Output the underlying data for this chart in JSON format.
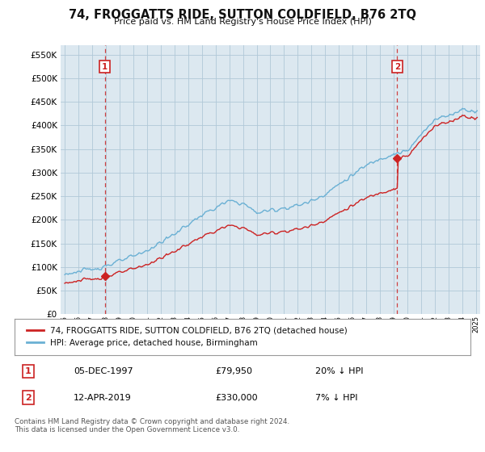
{
  "title": "74, FROGGATTS RIDE, SUTTON COLDFIELD, B76 2TQ",
  "subtitle": "Price paid vs. HM Land Registry's House Price Index (HPI)",
  "sale1_price": 79950,
  "sale1_display_date": "05-DEC-1997",
  "sale1_pct": "20% ↓ HPI",
  "sale2_price": 330000,
  "sale2_display_date": "12-APR-2019",
  "sale2_pct": "7% ↓ HPI",
  "hpi_color": "#6ab0d4",
  "price_color": "#cc2222",
  "vline_color": "#cc2222",
  "bg_color": "#ffffff",
  "plot_bg_color": "#dce8f0",
  "grid_color": "#b0c8d8",
  "legend_label1": "74, FROGGATTS RIDE, SUTTON COLDFIELD, B76 2TQ (detached house)",
  "legend_label2": "HPI: Average price, detached house, Birmingham",
  "footer": "Contains HM Land Registry data © Crown copyright and database right 2024.\nThis data is licensed under the Open Government Licence v3.0.",
  "ylim": [
    0,
    570000
  ],
  "yticks": [
    0,
    50000,
    100000,
    150000,
    200000,
    250000,
    300000,
    350000,
    400000,
    450000,
    500000,
    550000
  ],
  "xstart_year": 1995,
  "xend_year": 2025,
  "hpi_key_years": [
    1995,
    1996,
    1997,
    1998,
    1999,
    2000,
    2001,
    2002,
    2003,
    2004,
    2005,
    2006,
    2007,
    2008,
    2009,
    2010,
    2011,
    2012,
    2013,
    2014,
    2015,
    2016,
    2017,
    2018,
    2019,
    2020,
    2021,
    2022,
    2023,
    2024,
    2025
  ],
  "hpi_key_vals": [
    85000,
    90000,
    95000,
    103000,
    112000,
    122000,
    135000,
    152000,
    170000,
    190000,
    210000,
    225000,
    240000,
    235000,
    215000,
    220000,
    225000,
    230000,
    240000,
    255000,
    275000,
    295000,
    315000,
    330000,
    340000,
    345000,
    380000,
    415000,
    420000,
    435000,
    430000
  ],
  "sale1_t": 1997.917,
  "sale2_t": 2019.25
}
